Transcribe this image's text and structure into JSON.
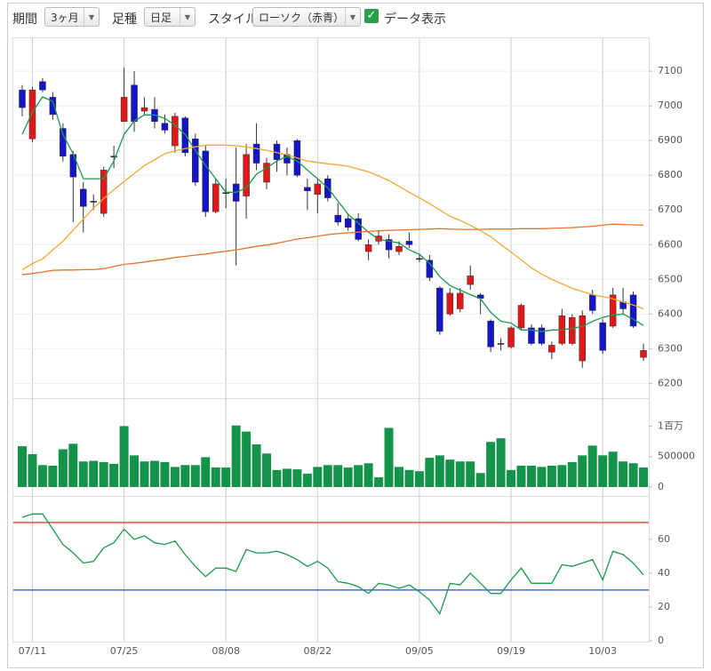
{
  "toolbar": {
    "period_label": "期間",
    "period_value": "3ヶ月",
    "bar_label": "足種",
    "bar_value": "日足",
    "style_label": "スタイル",
    "style_value": "ローソク（赤青）",
    "data_label": "データ表示"
  },
  "chart_data": [
    {
      "type": "candlestick",
      "categories": [
        null,
        "07/11",
        null,
        null,
        null,
        null,
        null,
        null,
        null,
        null,
        "07/25",
        null,
        null,
        null,
        null,
        null,
        null,
        null,
        null,
        null,
        "08/08",
        null,
        null,
        null,
        null,
        null,
        null,
        null,
        null,
        "08/22",
        null,
        null,
        null,
        null,
        null,
        null,
        null,
        null,
        null,
        "09/05",
        null,
        null,
        null,
        null,
        null,
        null,
        null,
        null,
        "09/19",
        null,
        null,
        null,
        null,
        null,
        null,
        null,
        null,
        "10/03",
        null,
        null,
        null,
        null
      ],
      "open": [
        7046,
        6905,
        7070,
        7025,
        6935,
        6860,
        6760,
        6725,
        6690,
        6855,
        6955,
        7060,
        6985,
        6990,
        6950,
        6885,
        6965,
        6905,
        6870,
        6695,
        6750,
        6775,
        6740,
        6890,
        6780,
        6890,
        6860,
        6900,
        6765,
        6745,
        6790,
        6685,
        6675,
        6675,
        6580,
        6610,
        6615,
        6580,
        6610,
        6560,
        6555,
        6475,
        6400,
        6415,
        6485,
        6455,
        6380,
        6315,
        6305,
        6360,
        6360,
        6360,
        6290,
        6315,
        6315,
        6265,
        6455,
        6375,
        6365,
        6435,
        6455,
        6275
      ],
      "high": [
        7060,
        7055,
        7080,
        7040,
        6950,
        6870,
        6780,
        6745,
        6825,
        6885,
        7110,
        7100,
        7025,
        7025,
        6975,
        6980,
        6970,
        6920,
        6885,
        6790,
        6790,
        6880,
        6890,
        6950,
        6850,
        6900,
        6880,
        6905,
        6790,
        6790,
        6800,
        6720,
        6690,
        6690,
        6615,
        6640,
        6630,
        6610,
        6635,
        6575,
        6570,
        6480,
        6475,
        6475,
        6540,
        6460,
        6385,
        6330,
        6365,
        6430,
        6370,
        6370,
        6320,
        6415,
        6400,
        6410,
        6470,
        6385,
        6475,
        6475,
        6465,
        6315
      ],
      "low": [
        6970,
        6895,
        7040,
        6960,
        6840,
        6665,
        6635,
        6700,
        6680,
        6820,
        6955,
        6925,
        6975,
        6935,
        6920,
        6865,
        6855,
        6770,
        6680,
        6690,
        6705,
        6540,
        6675,
        6815,
        6760,
        6810,
        6800,
        6795,
        6700,
        6690,
        6725,
        6655,
        6640,
        6610,
        6555,
        6600,
        6560,
        6570,
        6590,
        6550,
        6495,
        6340,
        6395,
        6405,
        6470,
        6400,
        6290,
        6295,
        6300,
        6355,
        6310,
        6310,
        6270,
        6310,
        6310,
        6245,
        6400,
        6285,
        6360,
        6400,
        6360,
        6265
      ],
      "close": [
        6995,
        7046,
        7046,
        6975,
        6855,
        6795,
        6710,
        6725,
        6815,
        6855,
        7025,
        6955,
        6995,
        6955,
        6930,
        6970,
        6865,
        6780,
        6695,
        6775,
        6750,
        6725,
        6860,
        6835,
        6835,
        6845,
        6835,
        6800,
        6755,
        6775,
        6735,
        6665,
        6650,
        6615,
        6600,
        6625,
        6585,
        6595,
        6600,
        6560,
        6505,
        6350,
        6460,
        6460,
        6510,
        6445,
        6305,
        6315,
        6360,
        6425,
        6315,
        6315,
        6310,
        6395,
        6390,
        6395,
        6410,
        6295,
        6455,
        6415,
        6365,
        6295
      ],
      "up_color": "#e01818",
      "down_color": "#1414c8",
      "doji_color": "#222222",
      "series": [
        {
          "color": "#1a9a4a",
          "values": [
            6918,
            6982,
            7026,
            7013,
            6918,
            6862,
            6790,
            6790,
            6790,
            6841,
            6918,
            6956,
            6974,
            6974,
            6964,
            6944,
            6918,
            6872,
            6828,
            6790,
            6751,
            6751,
            6764,
            6803,
            6821,
            6841,
            6854,
            6841,
            6815,
            6790,
            6764,
            6726,
            6687,
            6662,
            6636,
            6615,
            6610,
            6605,
            6585,
            6572,
            6546,
            6508,
            6482,
            6469,
            6456,
            6444,
            6405,
            6379,
            6374,
            6354,
            6354,
            6349,
            6354,
            6354,
            6359,
            6364,
            6379,
            6390,
            6397,
            6400,
            6385,
            6367
          ]
        },
        {
          "color": "#f0a830",
          "values": [
            6528,
            6545,
            6559,
            6585,
            6610,
            6642,
            6674,
            6705,
            6733,
            6758,
            6782,
            6805,
            6828,
            6845,
            6862,
            6870,
            6877,
            6882,
            6887,
            6887,
            6887,
            6885,
            6882,
            6877,
            6872,
            6865,
            6859,
            6850,
            6841,
            6837,
            6833,
            6830,
            6826,
            6818,
            6810,
            6798,
            6785,
            6768,
            6751,
            6735,
            6718,
            6700,
            6682,
            6670,
            6656,
            6640,
            6623,
            6600,
            6579,
            6556,
            6533,
            6515,
            6500,
            6487,
            6474,
            6465,
            6456,
            6450,
            6444,
            6435,
            6426,
            6415
          ]
        },
        {
          "color": "#e8742a",
          "values": [
            6513,
            6517,
            6521,
            6526,
            6527,
            6527,
            6528,
            6528,
            6531,
            6537,
            6543,
            6546,
            6550,
            6554,
            6558,
            6563,
            6566,
            6570,
            6573,
            6577,
            6581,
            6585,
            6590,
            6595,
            6599,
            6604,
            6610,
            6616,
            6620,
            6624,
            6629,
            6632,
            6634,
            6636,
            6638,
            6640,
            6641,
            6642,
            6643,
            6644,
            6645,
            6646,
            6645,
            6644,
            6644,
            6644,
            6645,
            6645,
            6645,
            6646,
            6646,
            6646,
            6647,
            6648,
            6649,
            6651,
            6653,
            6656,
            6659,
            6658,
            6657,
            6656
          ]
        }
      ],
      "ylim": [
        6160,
        7190
      ],
      "yticks": [
        6200,
        6300,
        6400,
        6500,
        6600,
        6700,
        6800,
        6900,
        7000,
        7100
      ],
      "grid": true
    },
    {
      "type": "bar",
      "color": "#14934a",
      "values": [
        670000,
        540000,
        360000,
        350000,
        620000,
        710000,
        420000,
        430000,
        410000,
        380000,
        1000000,
        520000,
        420000,
        430000,
        410000,
        330000,
        360000,
        360000,
        490000,
        320000,
        320000,
        1010000,
        910000,
        700000,
        550000,
        280000,
        300000,
        290000,
        220000,
        330000,
        360000,
        360000,
        320000,
        360000,
        390000,
        160000,
        970000,
        330000,
        280000,
        260000,
        480000,
        520000,
        450000,
        420000,
        420000,
        230000,
        740000,
        800000,
        280000,
        350000,
        350000,
        330000,
        350000,
        360000,
        410000,
        520000,
        680000,
        520000,
        580000,
        420000,
        390000,
        320000
      ],
      "ylim": [
        0,
        1400000
      ],
      "yticks": [
        0,
        500000,
        {
          "value": 1000000,
          "label": "1百万"
        }
      ]
    },
    {
      "type": "line",
      "series": [
        {
          "color": "#1a9a4a",
          "values": [
            73,
            75,
            75,
            66,
            57,
            52,
            46,
            47,
            55,
            58,
            66,
            60,
            62,
            58,
            57,
            59,
            51,
            44,
            38,
            43,
            43,
            41,
            54,
            52,
            52,
            53,
            51,
            48,
            44,
            47,
            43,
            35,
            34,
            32,
            28,
            34,
            33,
            31,
            33,
            29,
            24,
            16,
            34,
            33,
            40,
            34,
            28,
            28,
            36,
            43,
            34,
            34,
            34,
            45,
            44,
            46,
            48,
            36,
            53,
            51,
            46,
            39
          ]
        }
      ],
      "hlines": [
        {
          "value": 70,
          "color": "#e8553a"
        },
        {
          "value": 30,
          "color": "#3a6ed8"
        }
      ],
      "ylim": [
        0,
        82
      ],
      "yticks": [
        0,
        20,
        40,
        60
      ]
    }
  ]
}
